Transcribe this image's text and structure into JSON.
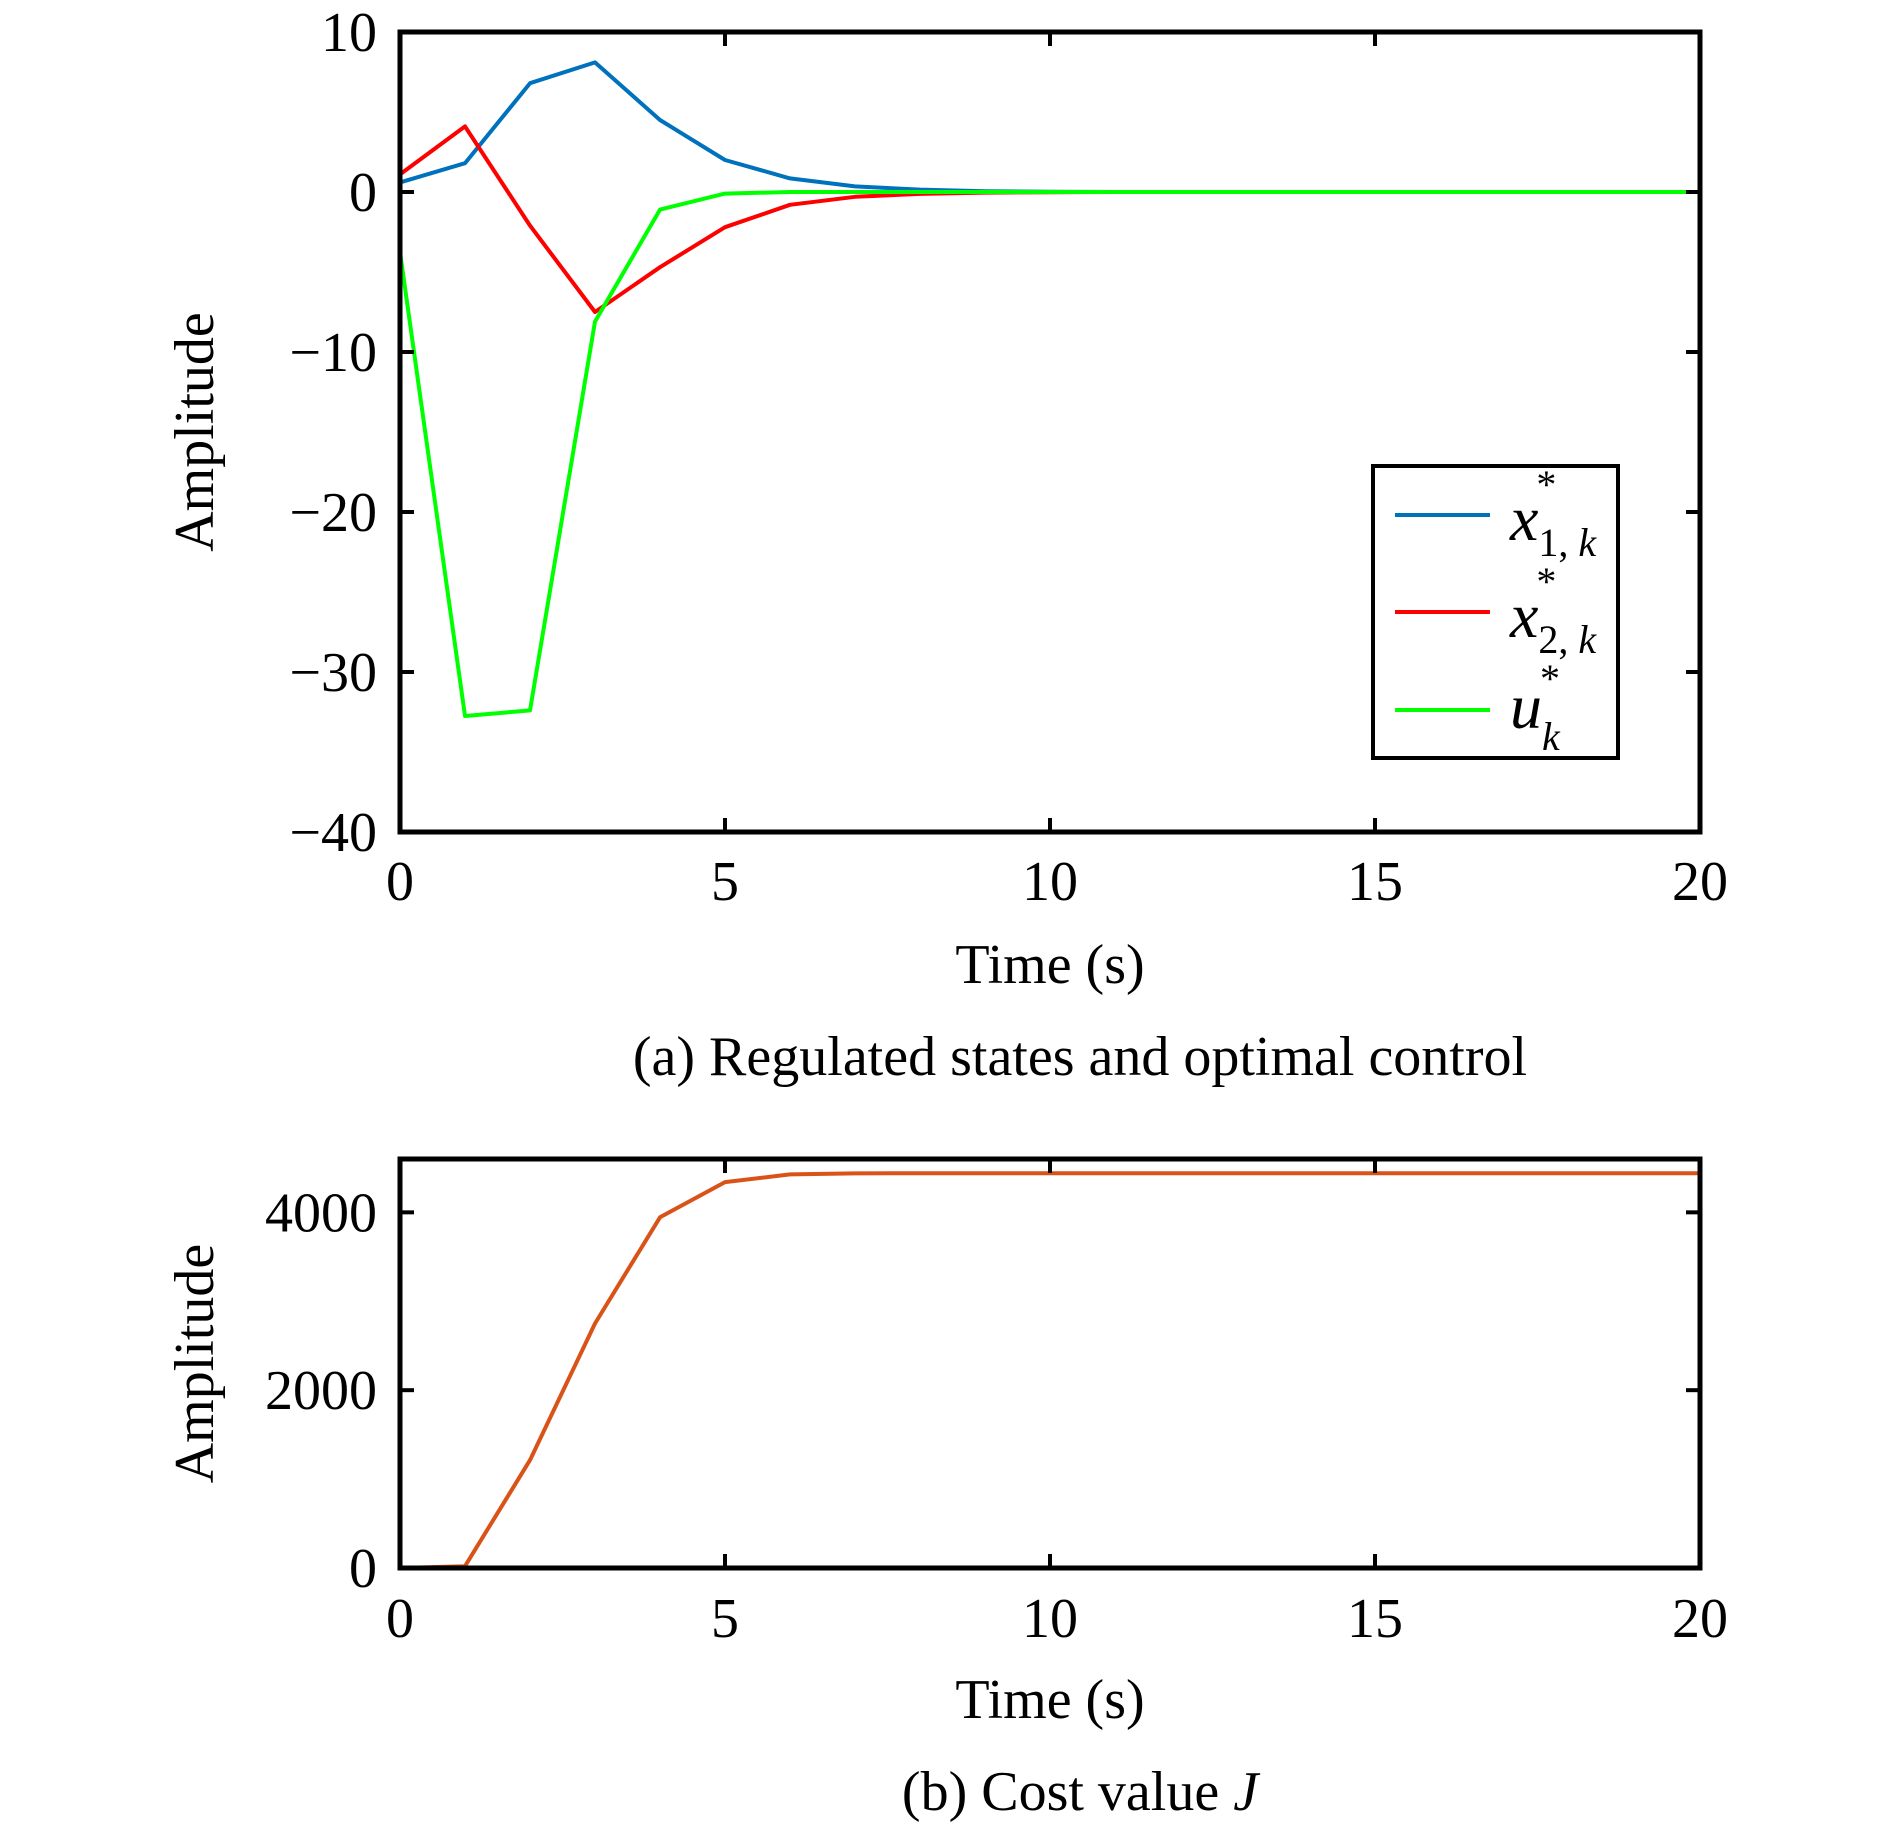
{
  "chart_data": [
    {
      "type": "line",
      "caption": "(a) Regulated states and optimal control",
      "xlabel": "Time (s)",
      "ylabel": "Amplitude",
      "xlim": [
        0,
        20
      ],
      "ylim": [
        -40,
        10
      ],
      "xticks": [
        0,
        5,
        10,
        15,
        20
      ],
      "xtick_labels": [
        "0",
        "5",
        "10",
        "15",
        "20"
      ],
      "yticks": [
        10,
        0,
        -10,
        -20,
        -30,
        -40
      ],
      "ytick_labels": [
        "10",
        "0",
        "−10",
        "−20",
        "−30",
        "−40"
      ],
      "grid": false,
      "legend_position": "lower-right",
      "x": [
        0,
        1,
        2,
        3,
        4,
        5,
        6,
        7,
        8,
        9,
        10,
        11,
        12,
        13,
        14,
        15,
        16,
        17,
        18,
        19,
        20
      ],
      "series": [
        {
          "name": "x*1,k",
          "legend": {
            "base": "x",
            "sup": "*",
            "sub": "1, ",
            "sub_italic": "k"
          },
          "color": "#0072BD",
          "values": [
            0.6,
            1.8,
            6.8,
            8.1,
            4.5,
            2.0,
            0.85,
            0.35,
            0.15,
            0.05,
            0.02,
            0,
            0,
            0,
            0,
            0,
            0,
            0,
            0,
            0,
            0
          ]
        },
        {
          "name": "x*2,k",
          "legend": {
            "base": "x",
            "sup": "*",
            "sub": "2, ",
            "sub_italic": "k"
          },
          "color": "#FF0000",
          "values": [
            1.1,
            4.1,
            -2.1,
            -7.5,
            -4.7,
            -2.2,
            -0.8,
            -0.3,
            -0.12,
            -0.04,
            -0.01,
            0,
            0,
            0,
            0,
            0,
            0,
            0,
            0,
            0,
            0
          ]
        },
        {
          "name": "u*k",
          "legend": {
            "base": "u",
            "sup": "*",
            "sub": "",
            "sub_italic": "k"
          },
          "color": "#00FF00",
          "values": [
            -3.75,
            -32.75,
            -32.4,
            -8.1,
            -1.1,
            -0.1,
            0,
            0,
            0,
            0,
            0,
            0,
            0,
            0,
            0,
            0,
            0,
            0,
            0,
            0,
            0
          ]
        }
      ]
    },
    {
      "type": "line",
      "caption": "(b) Cost value ",
      "caption_italic": "J",
      "xlabel": "Time (s)",
      "ylabel": "Amplitude",
      "xlim": [
        0,
        20
      ],
      "ylim": [
        0,
        4600
      ],
      "xticks": [
        0,
        5,
        10,
        15,
        20
      ],
      "xtick_labels": [
        "0",
        "5",
        "10",
        "15",
        "20"
      ],
      "yticks": [
        0,
        2000,
        4000
      ],
      "ytick_labels": [
        "0",
        "2000",
        "4000"
      ],
      "grid": false,
      "x": [
        0,
        1,
        2,
        3,
        4,
        5,
        6,
        7,
        8,
        9,
        10,
        11,
        12,
        13,
        14,
        15,
        16,
        17,
        18,
        19,
        20
      ],
      "series": [
        {
          "name": "J",
          "color": "#D95319",
          "values": [
            0,
            20,
            1213,
            2750,
            3944,
            4340,
            4427,
            4438,
            4440,
            4440,
            4440,
            4440,
            4440,
            4440,
            4440,
            4440,
            4440,
            4440,
            4440,
            4440,
            4440
          ]
        }
      ]
    }
  ]
}
